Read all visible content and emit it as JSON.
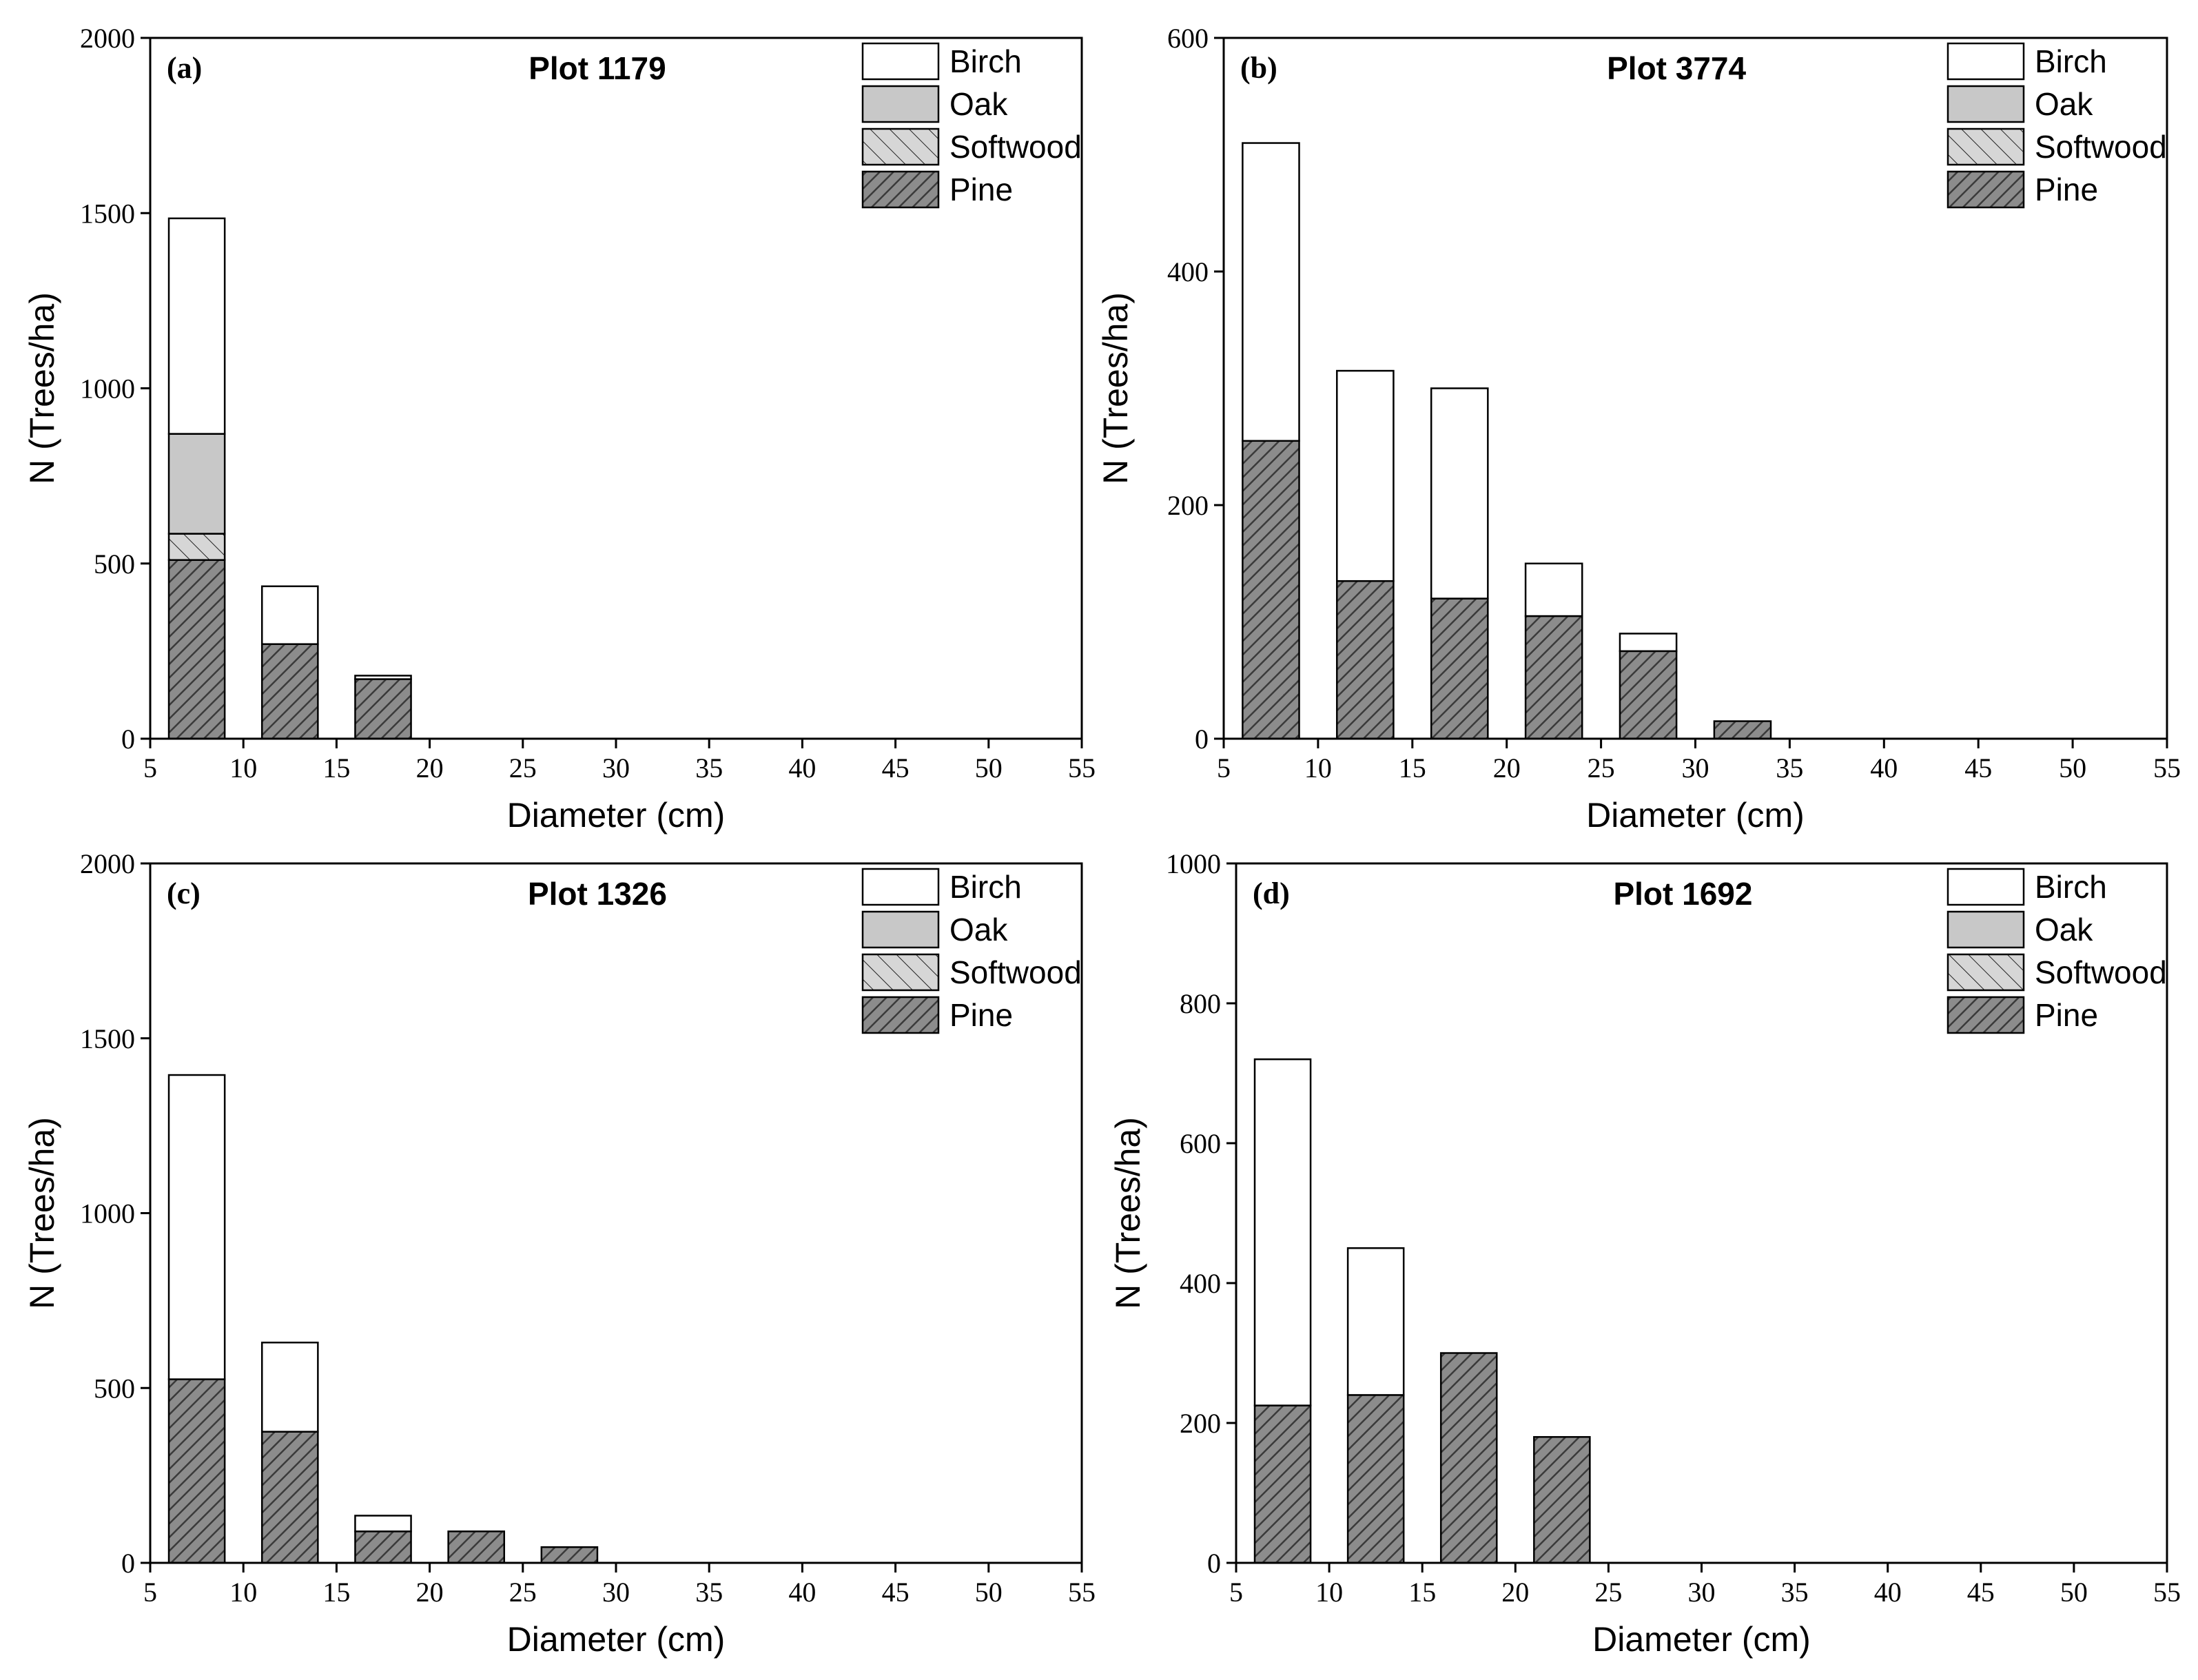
{
  "figure": {
    "legend_entries": [
      "Birch",
      "Oak",
      "Softwood",
      "Pine"
    ],
    "colors": {
      "birch": "#ffffff",
      "oak": "#c8c8c8",
      "softwood": "#d6d6d6",
      "pine": "#8c8c8c",
      "hatch": "#3a3a3a",
      "stroke": "#000000"
    }
  },
  "chart_data": [
    {
      "panel": "(a)",
      "title": "Plot 1179",
      "type": "bar",
      "stacked": true,
      "xlabel": "Diameter (cm)",
      "ylabel": "N (Trees/ha)",
      "xlim": [
        5,
        55
      ],
      "ylim": [
        0,
        2000
      ],
      "xticks": [
        5,
        10,
        15,
        20,
        25,
        30,
        35,
        40,
        45,
        50,
        55
      ],
      "yticks": [
        0,
        500,
        1000,
        1500,
        2000
      ],
      "bin_width": 3,
      "categories": [
        7.5,
        12.5,
        17.5
      ],
      "series": [
        {
          "name": "Pine",
          "values": [
            510,
            270,
            170
          ]
        },
        {
          "name": "Softwood",
          "values": [
            75,
            0,
            0
          ]
        },
        {
          "name": "Oak",
          "values": [
            285,
            0,
            0
          ]
        },
        {
          "name": "Birch",
          "values": [
            615,
            165,
            10
          ]
        }
      ],
      "legend": [
        "Birch",
        "Oak",
        "Softwood",
        "Pine"
      ],
      "legend_position": "top-right"
    },
    {
      "panel": "(b)",
      "title": "Plot 3774",
      "type": "bar",
      "stacked": true,
      "xlabel": "Diameter (cm)",
      "ylabel": "N (Trees/ha)",
      "xlim": [
        5,
        55
      ],
      "ylim": [
        0,
        600
      ],
      "xticks": [
        5,
        10,
        15,
        20,
        25,
        30,
        35,
        40,
        45,
        50,
        55
      ],
      "yticks": [
        0,
        200,
        400,
        600
      ],
      "bin_width": 3,
      "categories": [
        7.5,
        12.5,
        17.5,
        22.5,
        27.5,
        32.5
      ],
      "series": [
        {
          "name": "Pine",
          "values": [
            255,
            135,
            120,
            105,
            75,
            15
          ]
        },
        {
          "name": "Softwood",
          "values": [
            0,
            0,
            0,
            0,
            0,
            0
          ]
        },
        {
          "name": "Oak",
          "values": [
            0,
            0,
            0,
            0,
            0,
            0
          ]
        },
        {
          "name": "Birch",
          "values": [
            255,
            180,
            180,
            45,
            15,
            0
          ]
        }
      ],
      "legend": [
        "Birch",
        "Oak",
        "Softwood",
        "Pine"
      ],
      "legend_position": "top-right"
    },
    {
      "panel": "(c)",
      "title": "Plot 1326",
      "type": "bar",
      "stacked": true,
      "xlabel": "Diameter (cm)",
      "ylabel": "N (Trees/ha)",
      "xlim": [
        5,
        55
      ],
      "ylim": [
        0,
        2000
      ],
      "xticks": [
        5,
        10,
        15,
        20,
        25,
        30,
        35,
        40,
        45,
        50,
        55
      ],
      "yticks": [
        0,
        500,
        1000,
        1500,
        2000
      ],
      "bin_width": 3,
      "categories": [
        7.5,
        12.5,
        17.5,
        22.5,
        27.5
      ],
      "series": [
        {
          "name": "Pine",
          "values": [
            525,
            375,
            90,
            90,
            45
          ]
        },
        {
          "name": "Softwood",
          "values": [
            0,
            0,
            0,
            0,
            0
          ]
        },
        {
          "name": "Oak",
          "values": [
            0,
            0,
            0,
            0,
            0
          ]
        },
        {
          "name": "Birch",
          "values": [
            870,
            255,
            45,
            0,
            0
          ]
        }
      ],
      "legend": [
        "Birch",
        "Oak",
        "Softwood",
        "Pine"
      ],
      "legend_position": "top-right"
    },
    {
      "panel": "(d)",
      "title": "Plot 1692",
      "type": "bar",
      "stacked": true,
      "xlabel": "Diameter (cm)",
      "ylabel": "N (Trees/ha)",
      "xlim": [
        5,
        55
      ],
      "ylim": [
        0,
        1000
      ],
      "xticks": [
        5,
        10,
        15,
        20,
        25,
        30,
        35,
        40,
        45,
        50,
        55
      ],
      "yticks": [
        0,
        200,
        400,
        600,
        800,
        1000
      ],
      "bin_width": 3,
      "categories": [
        7.5,
        12.5,
        17.5,
        22.5
      ],
      "series": [
        {
          "name": "Pine",
          "values": [
            225,
            240,
            300,
            180
          ]
        },
        {
          "name": "Softwood",
          "values": [
            0,
            0,
            0,
            0
          ]
        },
        {
          "name": "Oak",
          "values": [
            0,
            0,
            0,
            0
          ]
        },
        {
          "name": "Birch",
          "values": [
            495,
            210,
            0,
            0
          ]
        }
      ],
      "legend": [
        "Birch",
        "Oak",
        "Softwood",
        "Pine"
      ],
      "legend_position": "top-right"
    }
  ]
}
